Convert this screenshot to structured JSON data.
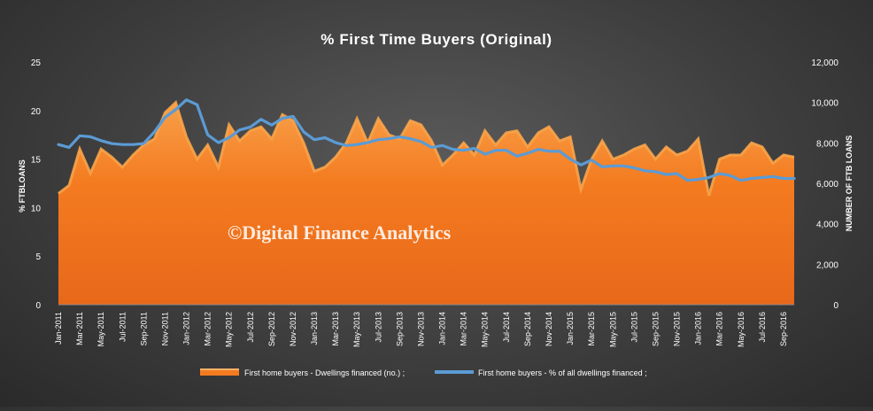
{
  "chart_data": {
    "type": "area+line",
    "title": "% First Time Buyers (Original)",
    "watermark": "©Digital Finance Analytics",
    "ylabel_left": "% FTBLOANS",
    "ylabel_right": "NUMBER OF FTB LOANS",
    "ylim_left": [
      0,
      25
    ],
    "ylim_right": [
      0,
      12000
    ],
    "yticks_left": [
      "0",
      "5",
      "10",
      "15",
      "20",
      "25"
    ],
    "yticks_right": [
      "0",
      "2,000",
      "4,000",
      "6,000",
      "8,000",
      "10,000",
      "12,000"
    ],
    "x_tick_labels": [
      "Jan-2011",
      "Mar-2011",
      "May-2011",
      "Jul-2011",
      "Sep-2011",
      "Nov-2011",
      "Jan-2012",
      "Mar-2012",
      "May-2012",
      "Jul-2012",
      "Sep-2012",
      "Nov-2012",
      "Jan-2013",
      "Mar-2013",
      "May-2013",
      "Jul-2013",
      "Sep-2013",
      "Nov-2013",
      "Jan-2014",
      "Mar-2014",
      "May-2014",
      "Jul-2014",
      "Sep-2014",
      "Nov-2014",
      "Jan-2015",
      "Mar-2015",
      "May-2015",
      "Jul-2015",
      "Sep-2015",
      "Nov-2015",
      "Jan-2016",
      "Mar-2016",
      "May-2016",
      "Jul-2016",
      "Sep-2016"
    ],
    "legend_position": "bottom",
    "series": [
      {
        "name": "First home buyers - Dwellings financed (no.) ;",
        "axis": "right",
        "kind": "area",
        "color": "#f47b20",
        "values": [
          5500,
          5900,
          7700,
          6500,
          7700,
          7300,
          6800,
          7400,
          7900,
          8200,
          9500,
          10000,
          8300,
          7200,
          7900,
          6800,
          8900,
          8100,
          8600,
          8800,
          8200,
          9400,
          9100,
          8000,
          6600,
          6800,
          7300,
          8000,
          9200,
          8000,
          9200,
          8400,
          8200,
          9100,
          8900,
          8100,
          6900,
          7400,
          8000,
          7400,
          8600,
          7900,
          8500,
          8600,
          7800,
          8500,
          8800,
          8100,
          8300,
          5700,
          7200,
          8100,
          7200,
          7400,
          7700,
          7900,
          7200,
          7800,
          7400,
          7600,
          8200,
          5400,
          7200,
          7400,
          7400,
          8000,
          7800,
          7000,
          7400,
          7300
        ],
        "color_highlight": "#f9a44a"
      },
      {
        "name": "First home buyers - % of all dwellings financed ;",
        "axis": "left",
        "kind": "line",
        "color": "#5b9bd5",
        "values": [
          16.5,
          16.2,
          17.4,
          17.3,
          16.9,
          16.6,
          16.5,
          16.5,
          16.6,
          17.8,
          19.3,
          20.1,
          21.1,
          20.6,
          17.5,
          16.7,
          17.2,
          18.0,
          18.3,
          19.1,
          18.5,
          19.2,
          19.4,
          17.8,
          17.0,
          17.2,
          16.7,
          16.4,
          16.5,
          16.7,
          17.0,
          17.1,
          17.3,
          17.1,
          16.8,
          16.2,
          16.4,
          16.0,
          15.9,
          16.1,
          15.5,
          15.9,
          15.9,
          15.3,
          15.6,
          16.0,
          15.8,
          15.8,
          15.0,
          14.4,
          14.9,
          14.2,
          14.3,
          14.3,
          14.1,
          13.8,
          13.7,
          13.4,
          13.5,
          12.8,
          12.9,
          13.1,
          13.5,
          13.3,
          12.8,
          13.0,
          13.1,
          13.2,
          13.0,
          13.0
        ]
      }
    ]
  }
}
